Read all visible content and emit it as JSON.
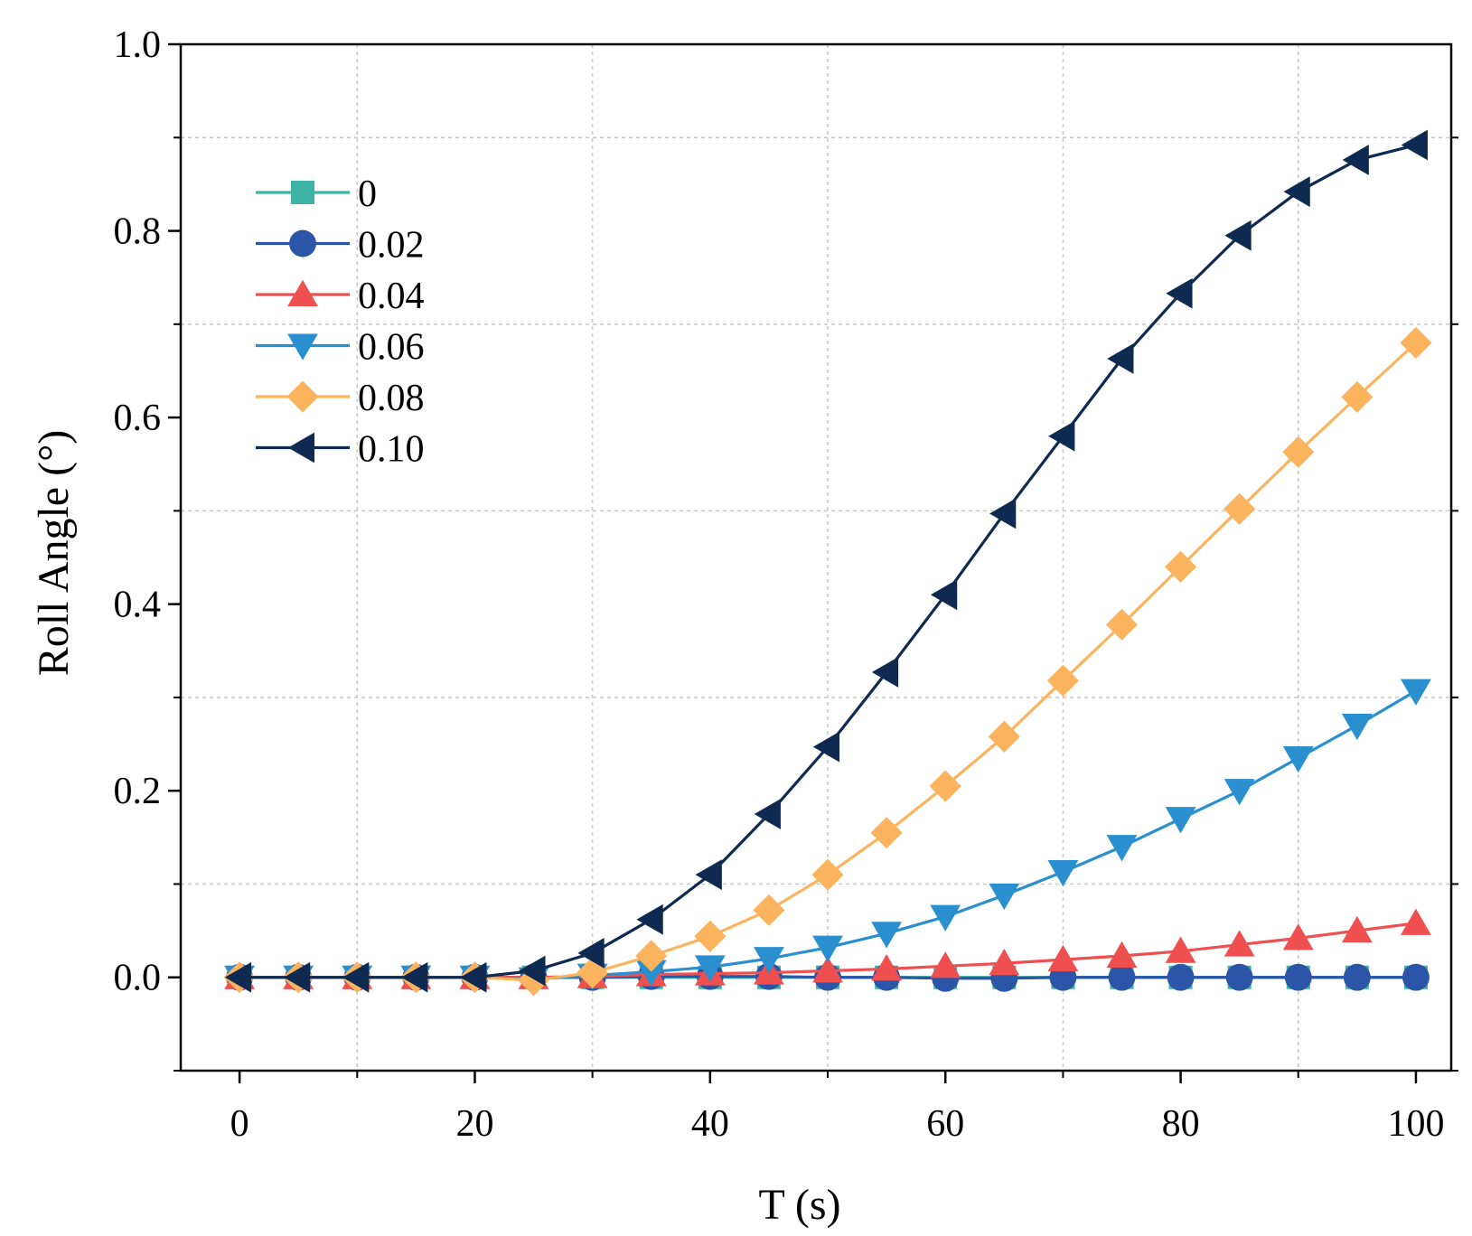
{
  "chart_data": {
    "type": "line",
    "title": "",
    "xlabel": "T (s)",
    "ylabel": "Roll Angle (°)",
    "xlim": [
      -5,
      103
    ],
    "ylim": [
      -0.1,
      1.0
    ],
    "xticks": [
      0,
      20,
      40,
      60,
      80,
      100
    ],
    "xtick_labels": [
      "0",
      "20",
      "40",
      "60",
      "80",
      "100"
    ],
    "yticks": [
      0.0,
      0.2,
      0.4,
      0.6,
      0.8,
      1.0
    ],
    "ytick_labels": [
      "0.0",
      "0.2",
      "0.4",
      "0.6",
      "0.8",
      "1.0"
    ],
    "grid": true,
    "legend_position": "top-left",
    "x": [
      0,
      5,
      10,
      15,
      20,
      25,
      30,
      35,
      40,
      45,
      50,
      55,
      60,
      65,
      70,
      75,
      80,
      85,
      90,
      95,
      100
    ],
    "series": [
      {
        "name": "0",
        "color": "#3cb3a4",
        "marker": "square",
        "values": [
          0,
          0,
          0,
          0,
          0,
          0,
          0,
          0,
          0,
          0,
          0,
          0,
          0,
          0,
          0,
          0,
          0,
          0,
          0,
          0,
          0
        ]
      },
      {
        "name": "0.02",
        "color": "#2b55a6",
        "marker": "circle",
        "values": [
          0,
          0,
          0,
          0,
          0,
          0,
          0,
          0.001,
          0.001,
          0.001,
          0,
          0,
          -0.001,
          -0.001,
          0,
          0,
          0,
          0,
          0,
          0,
          0
        ]
      },
      {
        "name": "0.04",
        "color": "#ef4f4f",
        "marker": "triangle-up",
        "values": [
          0,
          0,
          0,
          0,
          0,
          0,
          0.001,
          0.003,
          0.004,
          0.005,
          0.007,
          0.009,
          0.012,
          0.015,
          0.019,
          0.023,
          0.028,
          0.035,
          0.042,
          0.05,
          0.058
        ]
      },
      {
        "name": "0.06",
        "color": "#2a8fcf",
        "marker": "triangle-down",
        "values": [
          0,
          0,
          0,
          0,
          0,
          -0.002,
          0.002,
          0.006,
          0.011,
          0.02,
          0.032,
          0.047,
          0.065,
          0.088,
          0.113,
          0.14,
          0.17,
          0.2,
          0.235,
          0.27,
          0.307
        ]
      },
      {
        "name": "0.08",
        "color": "#fbb35e",
        "marker": "diamond",
        "values": [
          0,
          0,
          0,
          0,
          0,
          -0.003,
          0.005,
          0.023,
          0.044,
          0.072,
          0.11,
          0.155,
          0.205,
          0.258,
          0.318,
          0.378,
          0.44,
          0.502,
          0.563,
          0.622,
          0.68
        ]
      },
      {
        "name": "0.10",
        "color": "#0e2a51",
        "marker": "triangle-left",
        "values": [
          0,
          0,
          0,
          0,
          0,
          0.007,
          0.026,
          0.062,
          0.11,
          0.175,
          0.247,
          0.327,
          0.41,
          0.497,
          0.58,
          0.663,
          0.733,
          0.795,
          0.842,
          0.876,
          0.892
        ]
      }
    ]
  }
}
